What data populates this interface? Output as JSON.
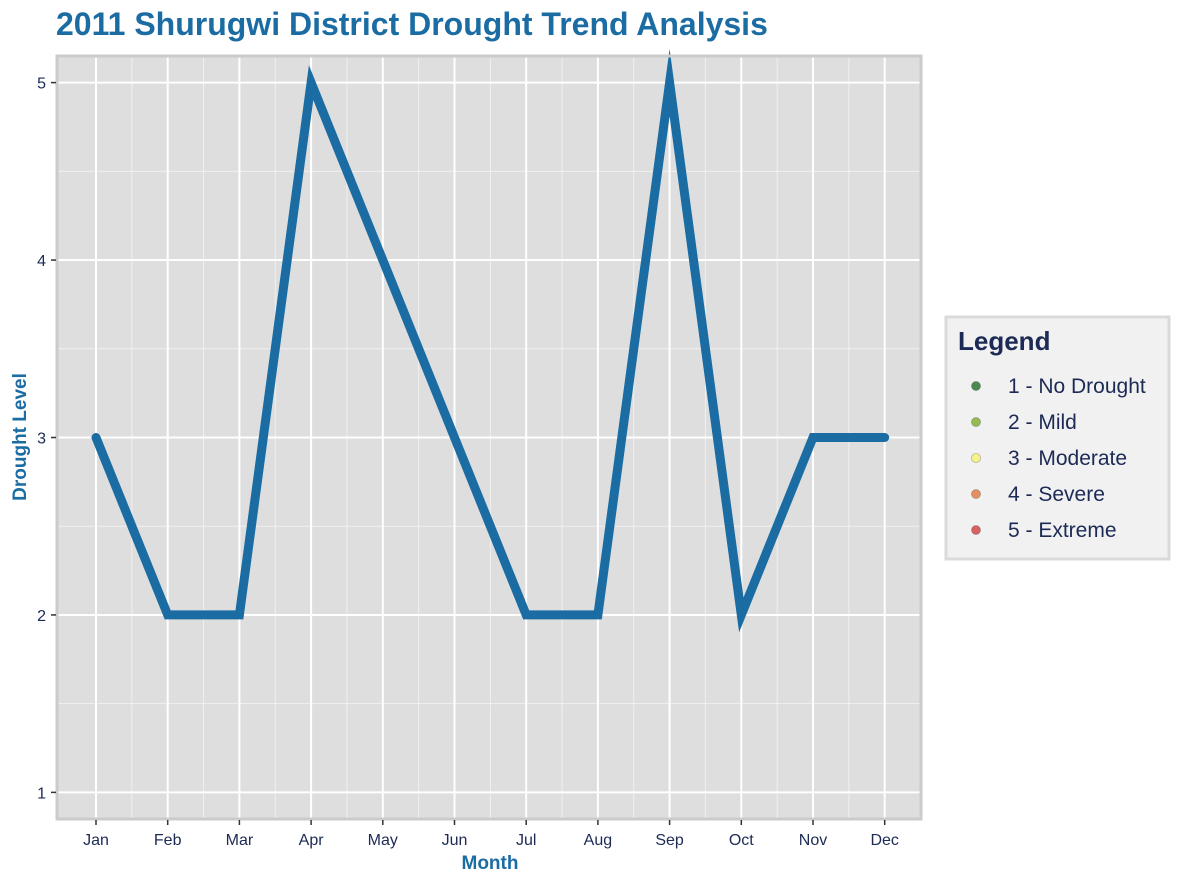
{
  "chart_data": {
    "type": "line",
    "title": "2011 Shurugwi District Drought Trend Analysis",
    "xlabel": "Month",
    "ylabel": "Drought Level",
    "categories": [
      "Jan",
      "Feb",
      "Mar",
      "Apr",
      "May",
      "Jun",
      "Jul",
      "Aug",
      "Sep",
      "Oct",
      "Nov",
      "Dec"
    ],
    "series": [
      {
        "values": [
          3,
          2,
          2,
          5,
          4,
          3,
          2,
          2,
          5,
          2,
          3,
          3
        ],
        "color": "#1b6ca3"
      }
    ],
    "ylim": [
      0.85,
      5.15
    ],
    "yticks": [
      1,
      2,
      3,
      4,
      5
    ],
    "ytick_labels": [
      "1",
      "2",
      "3",
      "4",
      "5"
    ],
    "grid": true,
    "legend": {
      "title": "Legend",
      "placement": "right",
      "items": [
        {
          "label": "1 - No Drought",
          "color": "#4a8a50"
        },
        {
          "label": "2 - Mild",
          "color": "#93bb50"
        },
        {
          "label": "3 - Moderate",
          "color": "#f6f48a"
        },
        {
          "label": "4 - Severe",
          "color": "#e59060"
        },
        {
          "label": "5 - Extreme",
          "color": "#d86163"
        }
      ]
    },
    "colors": {
      "title": "#1b6ca3",
      "axis_title": "#1b6ca3",
      "tick_label": "#1c2a55",
      "legend_text": "#1c2a55",
      "panel_bg": "#dedede",
      "panel_border": "#cbcbcb",
      "grid": "#ffffff",
      "legend_bg": "#f1f1f1",
      "legend_border": "#dadada"
    }
  }
}
